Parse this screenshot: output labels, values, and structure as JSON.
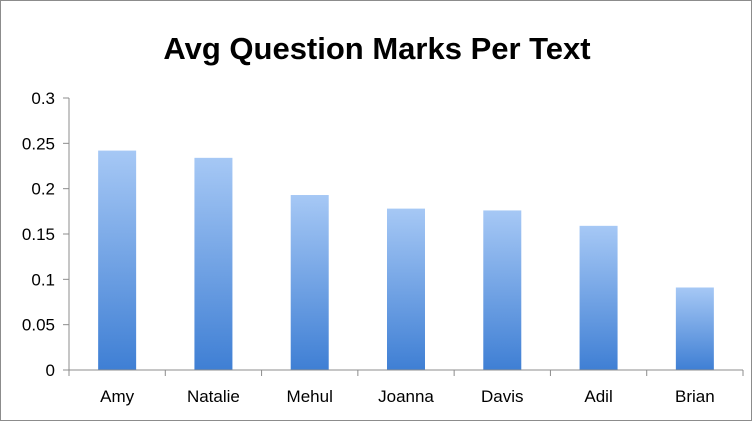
{
  "chart_data": {
    "type": "bar",
    "title": "Avg Question Marks Per Text",
    "xlabel": "",
    "ylabel": "",
    "categories": [
      "Amy",
      "Natalie",
      "Mehul",
      "Joanna",
      "Davis",
      "Adil",
      "Brian"
    ],
    "values": [
      0.242,
      0.234,
      0.193,
      0.178,
      0.176,
      0.159,
      0.091
    ],
    "ylim": [
      0,
      0.3
    ],
    "yticks": [
      "0",
      "0.05",
      "0.1",
      "0.15",
      "0.2",
      "0.25",
      "0.3"
    ],
    "grid": false,
    "legend": "none",
    "colors": {
      "bar_top": "#a6c8f5",
      "bar_bottom": "#3f7fd4",
      "axis": "#8c8c8c"
    }
  }
}
